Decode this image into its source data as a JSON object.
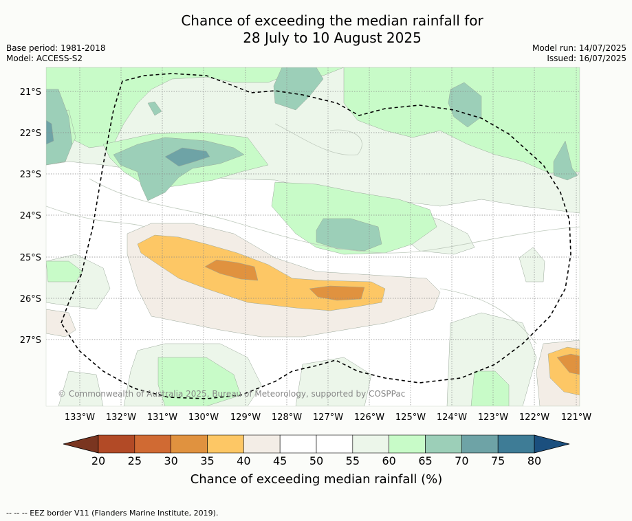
{
  "title_line1": "Chance of exceeding the median rainfall for",
  "title_line2": "28 July to 10 August 2025",
  "meta_left": {
    "base_period": "Base period: 1981-2018",
    "model": "Model: ACCESS-S2"
  },
  "meta_right": {
    "model_run": "Model run: 14/07/2025",
    "issued": "Issued: 16/07/2025"
  },
  "copyright": "© Commonwealth of Australia 2025, Bureau of Meteorology, supported by COSPPac",
  "lat_labels": [
    "21°S",
    "22°S",
    "23°S",
    "24°S",
    "25°S",
    "26°S",
    "27°S"
  ],
  "lon_labels": [
    "133°W",
    "132°W",
    "131°W",
    "130°W",
    "129°W",
    "128°W",
    "127°W",
    "126°W",
    "125°W",
    "124°W",
    "123°W",
    "122°W",
    "121°W"
  ],
  "colorbar": {
    "ticks": [
      "20",
      "25",
      "30",
      "35",
      "40",
      "45",
      "50",
      "55",
      "60",
      "65",
      "70",
      "75",
      "80"
    ],
    "label": "Chance of exceeding median rainfall (%)",
    "colors": [
      "#7a3520",
      "#b24a26",
      "#d06a33",
      "#e0923f",
      "#fdc765",
      "#f3ede6",
      "#ffffff",
      "#ffffff",
      "#ecf6ea",
      "#c8fbc8",
      "#9ccfb8",
      "#6ea3a6",
      "#3e7c96",
      "#1b4f7e"
    ]
  },
  "colors": {
    "lt60": "#ecf6ea",
    "lt65": "#c8fbc8",
    "lt70": "#9ccfb8",
    "lt75": "#6ea3a6",
    "lt80": "#3e7c96",
    "dry40": "#f3ede6",
    "dry35": "#fdc765",
    "dry30": "#e0923f"
  },
  "footer": "--  --  -- EEZ border V11 (Flanders Marine Institute, 2019)."
}
